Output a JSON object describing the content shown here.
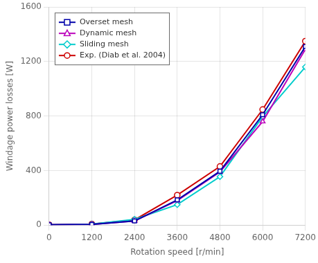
{
  "chart_data": {
    "type": "line",
    "x": [
      0,
      1200,
      2400,
      3600,
      4800,
      6000,
      7200
    ],
    "xlabel": "Rotation speed [r/min]",
    "ylabel": "Windage power losses [W]",
    "xlim": [
      0,
      7200
    ],
    "ylim": [
      0,
      1600
    ],
    "xticks": [
      0,
      1200,
      2400,
      3600,
      4800,
      6000,
      7200
    ],
    "yticks": [
      0,
      400,
      800,
      1200,
      1600
    ],
    "grid": true,
    "legend": "upper left",
    "series": [
      {
        "name": "Overset mesh",
        "color": "#0000AA",
        "marker": "square",
        "values": [
          2,
          5,
          30,
          185,
          395,
          810,
          1310
        ]
      },
      {
        "name": "Dynamic mesh",
        "color": "#BB00BB",
        "marker": "triangle",
        "values": [
          2,
          5,
          30,
          180,
          390,
          760,
          1290
        ]
      },
      {
        "name": "Sliding mesh",
        "color": "#00CCCC",
        "marker": "diamond",
        "values": [
          2,
          8,
          42,
          150,
          355,
          795,
          1160
        ]
      },
      {
        "name": "Exp. (Diab et al. 2004)",
        "color": "#CC0000",
        "marker": "circle",
        "values": [
          2,
          8,
          38,
          220,
          430,
          848,
          1350
        ]
      }
    ]
  }
}
